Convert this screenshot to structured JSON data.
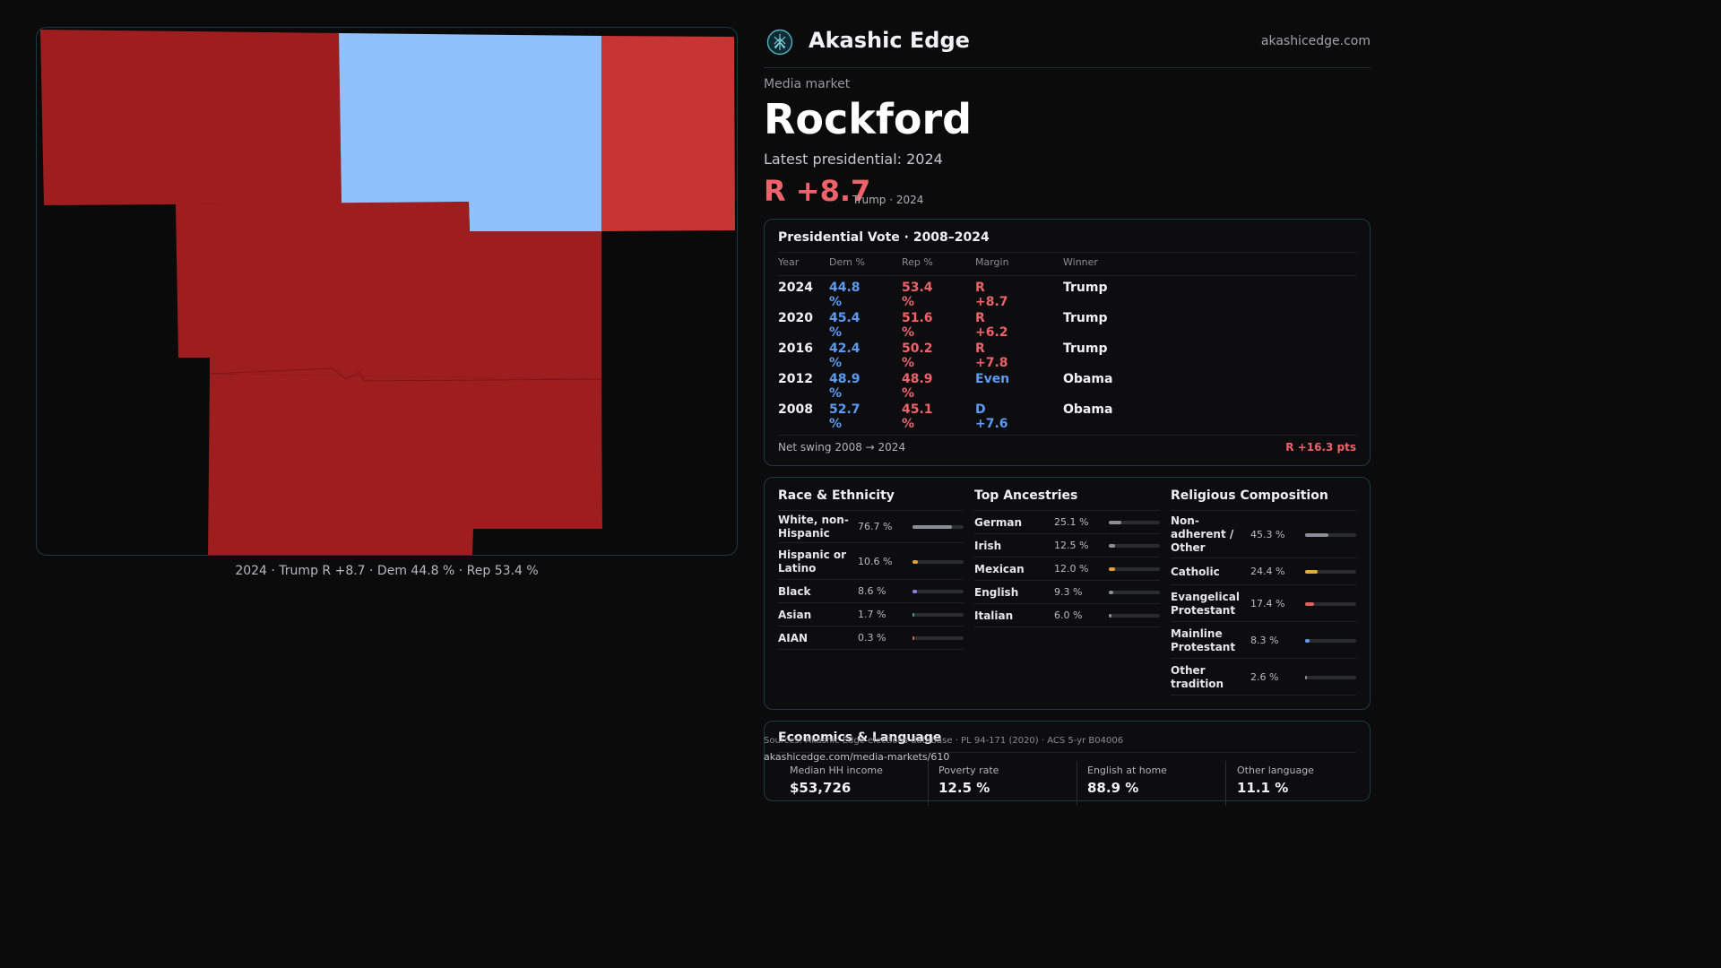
{
  "map": {
    "caption": "2024 · Trump R +8.7 · Dem 44.8 % · Rep 53.4 %",
    "colors": {
      "dark_red": "#9e1e20",
      "red": "#c73434",
      "light_blue": "#8fc1fd"
    }
  },
  "header": {
    "brand": "Akashic Edge",
    "site": "akashicedge.com",
    "logo_icon": "tree-of-life-icon"
  },
  "market": {
    "eyebrow": "Media market",
    "name": "Rockford",
    "latest_label": "Latest presidential: 2024",
    "margin": "R +8.7",
    "margin_sub": "Trump · 2024"
  },
  "presidential": {
    "title": "Presidential Vote · 2008–2024",
    "headers": {
      "year": "Year",
      "dem": "Dem %",
      "rep": "Rep %",
      "margin": "Margin",
      "winner": "Winner"
    },
    "rows": [
      {
        "year": "2024",
        "dem": "44.8 %",
        "rep": "53.4 %",
        "margin": "R +8.7",
        "margin_party": "rep",
        "winner": "Trump"
      },
      {
        "year": "2020",
        "dem": "45.4 %",
        "rep": "51.6 %",
        "margin": "R +6.2",
        "margin_party": "rep",
        "winner": "Trump"
      },
      {
        "year": "2016",
        "dem": "42.4 %",
        "rep": "50.2 %",
        "margin": "R +7.8",
        "margin_party": "rep",
        "winner": "Trump"
      },
      {
        "year": "2012",
        "dem": "48.9 %",
        "rep": "48.9 %",
        "margin": "Even",
        "margin_party": "dem",
        "winner": "Obama"
      },
      {
        "year": "2008",
        "dem": "52.7 %",
        "rep": "45.1 %",
        "margin": "D +7.6",
        "margin_party": "dem",
        "winner": "Obama"
      }
    ],
    "net_label": "Net swing 2008 → 2024",
    "net_value": "R +16.3 pts"
  },
  "race": {
    "title": "Race & Ethnicity",
    "items": [
      {
        "label": "White, non-Hispanic",
        "value": "76.7 %",
        "fraction": 0.767,
        "color": "#8a8f96"
      },
      {
        "label": "Hispanic or Latino",
        "value": "10.6 %",
        "fraction": 0.106,
        "color": "#e0a030"
      },
      {
        "label": "Black",
        "value": "8.6 %",
        "fraction": 0.086,
        "color": "#8a7ff0"
      },
      {
        "label": "Asian",
        "value": "1.7 %",
        "fraction": 0.017,
        "color": "#3aa890"
      },
      {
        "label": "AIAN",
        "value": "0.3 %",
        "fraction": 0.003,
        "color": "#c07050"
      }
    ]
  },
  "ancestries": {
    "title": "Top Ancestries",
    "items": [
      {
        "label": "German",
        "value": "25.1 %",
        "fraction": 0.251,
        "color": "#8a8f96"
      },
      {
        "label": "Irish",
        "value": "12.5 %",
        "fraction": 0.125,
        "color": "#8a8f96"
      },
      {
        "label": "Mexican",
        "value": "12.0 %",
        "fraction": 0.12,
        "color": "#e0a030"
      },
      {
        "label": "English",
        "value": "9.3 %",
        "fraction": 0.093,
        "color": "#8a8f96"
      },
      {
        "label": "Italian",
        "value": "6.0 %",
        "fraction": 0.06,
        "color": "#8a8f96"
      }
    ]
  },
  "religion": {
    "title": "Religious Composition",
    "items": [
      {
        "label": "Non-adherent / Other",
        "value": "45.3 %",
        "fraction": 0.453,
        "color": "#8a8f96"
      },
      {
        "label": "Catholic",
        "value": "24.4 %",
        "fraction": 0.244,
        "color": "#e0b030"
      },
      {
        "label": "Evangelical Protestant",
        "value": "17.4 %",
        "fraction": 0.174,
        "color": "#e06060"
      },
      {
        "label": "Mainline Protestant",
        "value": "8.3 %",
        "fraction": 0.083,
        "color": "#5b9cf2"
      },
      {
        "label": "Other tradition",
        "value": "2.6 %",
        "fraction": 0.026,
        "color": "#8a8f96"
      }
    ]
  },
  "economics": {
    "title": "Economics & Language",
    "stats": [
      {
        "label": "Median HH income",
        "value": "$53,726"
      },
      {
        "label": "Poverty rate",
        "value": "12.5 %"
      },
      {
        "label": "English at home",
        "value": "88.9 %"
      },
      {
        "label": "Other language",
        "value": "11.1 %"
      }
    ]
  },
  "footer": {
    "sources": "Sources: Akashic Edge elections database · PL 94-171 (2020) · ACS 5-yr B04006",
    "link": "akashicedge.com/media-markets/610"
  }
}
